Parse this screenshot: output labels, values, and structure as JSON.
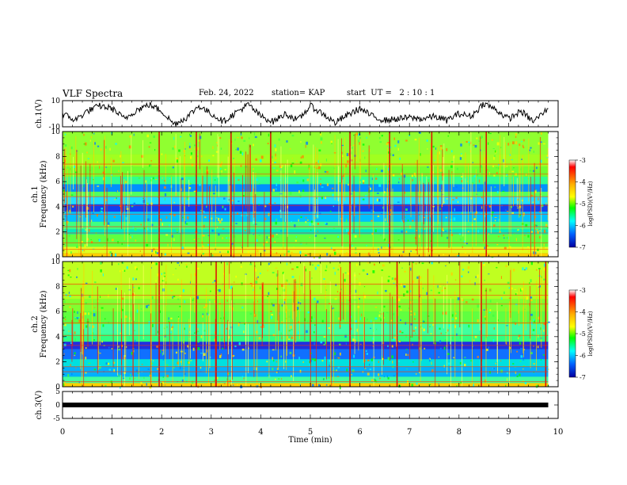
{
  "header": {
    "title": "VLF Spectra",
    "date": "Feb. 24, 2022",
    "station": "station= KAP",
    "start": "start  UT =   2 : 10 : 1"
  },
  "chart_data": [
    {
      "type": "line",
      "ylabel": "ch.1(V)",
      "ylim": [
        -10,
        10
      ],
      "yticks": [
        "10",
        "-10"
      ],
      "x": [
        0,
        0.25,
        0.5,
        0.75,
        1.0,
        1.25,
        1.5,
        1.75,
        2.0,
        2.25,
        2.5,
        2.75,
        3.0,
        3.25,
        3.5,
        3.75,
        4.0,
        4.25,
        4.5,
        4.75,
        5.0,
        5.25,
        5.5,
        5.75,
        6.0,
        6.25,
        6.5,
        6.75,
        7.0,
        7.25,
        7.5,
        7.75,
        8.0,
        8.25,
        8.5,
        8.75,
        9.0,
        9.25,
        9.5,
        9.8
      ],
      "y": [
        0,
        -5,
        2,
        6,
        4,
        -4,
        3,
        7,
        2,
        -8,
        -3,
        6,
        0,
        -6,
        1,
        7,
        -2,
        -6,
        0,
        -5,
        6,
        0,
        -7,
        -1,
        4,
        -2,
        -5,
        -4,
        -3,
        -4,
        -2,
        -5,
        0,
        -2,
        8,
        3,
        -4,
        2,
        -6,
        4
      ]
    },
    {
      "type": "heatmap",
      "ylabel": "ch.1\nFrequency (kHz)",
      "ylim": [
        0,
        10
      ],
      "yticks": [
        "0",
        "2",
        "4",
        "6",
        "8",
        "10"
      ],
      "colorbar": {
        "label": "log(PSD)(V²/Hz)",
        "range": [
          -7,
          -3
        ],
        "ticks": [
          "-3",
          "-4",
          "-5",
          "-6",
          "-7"
        ]
      }
    },
    {
      "type": "heatmap",
      "ylabel": "ch.2\nFrequency (kHz)",
      "ylim": [
        0,
        10
      ],
      "yticks": [
        "0",
        "2",
        "4",
        "6",
        "8",
        "10"
      ],
      "colorbar": {
        "label": "log(PSD)(V²/Hz)",
        "range": [
          -7,
          -3
        ],
        "ticks": [
          "-3",
          "-4",
          "-5",
          "-6",
          "-7"
        ]
      }
    },
    {
      "type": "line",
      "ylabel": "ch.3(V)",
      "ylim": [
        -5,
        5
      ],
      "yticks": [
        "5",
        "0",
        "-5"
      ],
      "x": [
        0,
        9.8
      ],
      "y": [
        0,
        0
      ]
    }
  ],
  "xaxis": {
    "label": "Time (min)",
    "range": [
      0,
      10
    ],
    "ticks": [
      "0",
      "1",
      "2",
      "3",
      "4",
      "5",
      "6",
      "7",
      "8",
      "9",
      "10"
    ]
  },
  "colors": {
    "line": "#000000",
    "frame": "#000000"
  }
}
